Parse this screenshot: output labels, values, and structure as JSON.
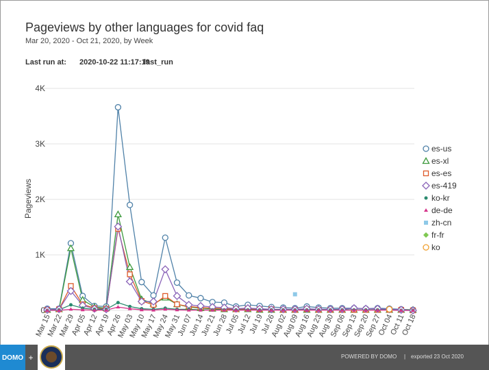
{
  "chart_data": {
    "type": "line",
    "title": "Pageviews by other languages for covid faq",
    "subtitle": "Mar 20, 2020 - Oct 21, 2020, by Week",
    "last_run_label": "Last run at:",
    "last_run": "2020-10-22 11:17:19",
    "last_run_name": "last_run",
    "ylabel": "Pageviews",
    "categories": [
      "Mar 15",
      "Mar 22",
      "Mar 29",
      "Apr 05",
      "Apr 12",
      "Apr 19",
      "Apr 26",
      "May 03",
      "May 10",
      "May 17",
      "May 24",
      "May 31",
      "Jun 07",
      "Jun 14",
      "Jun 21",
      "Jun 28",
      "Jul 05",
      "Jul 12",
      "Jul 19",
      "Jul 26",
      "Aug 02",
      "Aug 09",
      "Aug 16",
      "Aug 23",
      "Aug 30",
      "Sep 06",
      "Sep 13",
      "Sep 20",
      "Sep 27",
      "Oct 04",
      "Oct 11",
      "Oct 18"
    ],
    "ylim": [
      0,
      4000
    ],
    "yticks": [
      0,
      {
        "value": 1000,
        "label": "1K"
      },
      {
        "value": 2000,
        "label": "2K"
      },
      {
        "value": 3000,
        "label": "3K"
      },
      {
        "value": 4000,
        "label": "4K"
      }
    ],
    "grid": true,
    "legend": "right",
    "series": [
      {
        "name": "es-us",
        "color": "#4f81a8",
        "marker": "circle",
        "values": [
          30,
          30,
          1210,
          260,
          80,
          70,
          3660,
          1900,
          510,
          270,
          1310,
          500,
          270,
          220,
          150,
          140,
          70,
          100,
          80,
          60,
          50,
          40,
          70,
          50,
          40,
          40,
          40,
          30,
          40,
          30,
          20,
          10
        ]
      },
      {
        "name": "es-xl",
        "color": "#3d9a3d",
        "marker": "triangle",
        "values": [
          10,
          20,
          1120,
          190,
          60,
          40,
          1730,
          780,
          200,
          120,
          230,
          110,
          60,
          40,
          30,
          20,
          20,
          20,
          10,
          10,
          10,
          10,
          10,
          10,
          10,
          10,
          10,
          10,
          10,
          10,
          10,
          10
        ]
      },
      {
        "name": "es-es",
        "color": "#de5a2a",
        "marker": "square",
        "values": [
          10,
          20,
          440,
          110,
          40,
          30,
          1470,
          650,
          170,
          100,
          260,
          110,
          70,
          50,
          40,
          30,
          20,
          30,
          20,
          20,
          10,
          10,
          20,
          10,
          10,
          10,
          10,
          10,
          10,
          10,
          10,
          0
        ]
      },
      {
        "name": "es-419",
        "color": "#8a63b8",
        "marker": "diamond",
        "values": [
          10,
          20,
          350,
          90,
          30,
          20,
          1510,
          520,
          160,
          160,
          740,
          260,
          100,
          80,
          60,
          50,
          30,
          40,
          30,
          20,
          20,
          20,
          30,
          20,
          20,
          20,
          40,
          30,
          30,
          20,
          10,
          0
        ]
      },
      {
        "name": "ko-kr",
        "color": "#2a8a6e",
        "marker": "dot",
        "values": [
          0,
          10,
          100,
          40,
          20,
          20,
          140,
          70,
          30,
          20,
          40,
          20,
          20,
          10,
          10,
          10,
          10,
          10,
          10,
          10,
          10,
          10,
          10,
          10,
          10,
          10,
          10,
          10,
          10,
          10,
          0,
          0
        ]
      },
      {
        "name": "de-de",
        "color": "#d6338a",
        "marker": "tri-fill",
        "values": [
          0,
          0,
          20,
          10,
          5,
          5,
          60,
          30,
          10,
          5,
          20,
          10,
          5,
          5,
          5,
          5,
          5,
          5,
          5,
          5,
          5,
          5,
          5,
          5,
          5,
          5,
          5,
          5,
          5,
          5,
          0,
          0
        ]
      },
      {
        "name": "zh-cn",
        "color": "#8ec9e8",
        "marker": "square-fill",
        "values": [
          null,
          null,
          null,
          null,
          null,
          null,
          null,
          null,
          null,
          null,
          null,
          null,
          null,
          null,
          null,
          null,
          null,
          null,
          null,
          null,
          null,
          290,
          null,
          null,
          null,
          null,
          null,
          null,
          null,
          null,
          null,
          null
        ]
      },
      {
        "name": "fr-fr",
        "color": "#7ec850",
        "marker": "diamond-fill",
        "values": [
          null,
          null,
          null,
          null,
          null,
          null,
          null,
          null,
          null,
          null,
          null,
          null,
          null,
          null,
          null,
          null,
          null,
          null,
          null,
          null,
          null,
          null,
          null,
          null,
          null,
          null,
          null,
          null,
          null,
          10,
          null,
          null
        ]
      },
      {
        "name": "ko",
        "color": "#f0a030",
        "marker": "circle",
        "values": [
          null,
          null,
          null,
          null,
          null,
          null,
          null,
          null,
          null,
          null,
          null,
          null,
          null,
          null,
          null,
          null,
          null,
          null,
          null,
          null,
          null,
          null,
          null,
          null,
          null,
          null,
          null,
          null,
          null,
          20,
          null,
          null
        ]
      }
    ]
  },
  "footer": {
    "logo": "DOMO",
    "plus": "+",
    "powered": "POWERED BY DOMO",
    "separator": "|",
    "exported": "exported 23 Oct 2020"
  }
}
